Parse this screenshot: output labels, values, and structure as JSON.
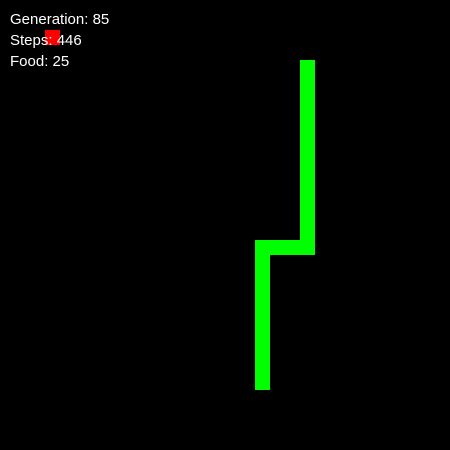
{
  "hud": {
    "generation_label": "Generation:",
    "generation_value": "85",
    "steps_label": "Steps:",
    "steps_value": "446",
    "food_label": "Food:",
    "food_value": "25"
  },
  "colors": {
    "background": "#000000",
    "snake": "#00ff00",
    "food": "#ff0000",
    "text": "#ffffff"
  },
  "grid": {
    "cell_count": 30
  },
  "food": {
    "col": 3,
    "row": 2
  },
  "snake": {
    "segments": [
      [
        17,
        25
      ],
      [
        17,
        24
      ],
      [
        17,
        23
      ],
      [
        17,
        22
      ],
      [
        17,
        21
      ],
      [
        17,
        20
      ],
      [
        17,
        19
      ],
      [
        17,
        18
      ],
      [
        17,
        17
      ],
      [
        17,
        16
      ],
      [
        18,
        16
      ],
      [
        19,
        16
      ],
      [
        20,
        16
      ],
      [
        20,
        15
      ],
      [
        20,
        14
      ],
      [
        20,
        13
      ],
      [
        20,
        12
      ],
      [
        20,
        11
      ],
      [
        20,
        10
      ],
      [
        20,
        9
      ],
      [
        20,
        8
      ],
      [
        20,
        7
      ],
      [
        20,
        6
      ],
      [
        20,
        5
      ],
      [
        20,
        4
      ]
    ]
  }
}
